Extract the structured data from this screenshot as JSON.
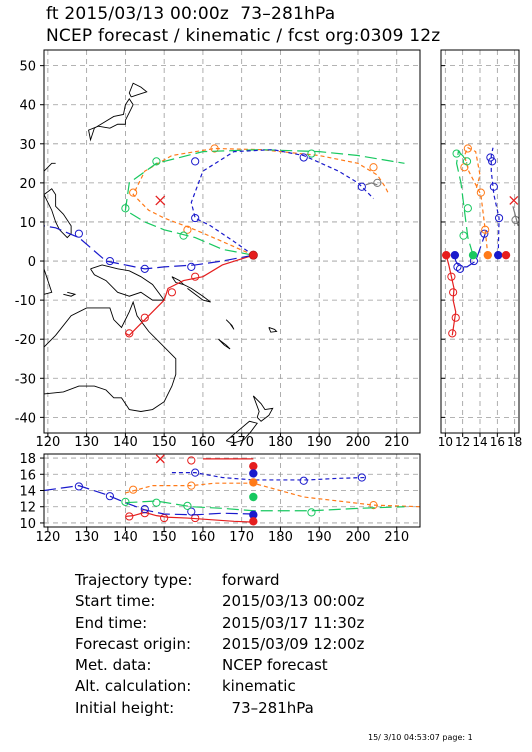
{
  "header": {
    "line1": "ft 2015/03/13 00:00z  73–281hPa",
    "line2": "NCEP forecast / kinematic / fcst org:0309 12z"
  },
  "info": [
    {
      "label": "Trajectory type:",
      "value": "forward"
    },
    {
      "label": "Start time:",
      "value": "2015/03/13 00:00z"
    },
    {
      "label": "End time:",
      "value": "2015/03/17 11:30z"
    },
    {
      "label": "Forecast origin:",
      "value": "2015/03/09 12:00z"
    },
    {
      "label": "Met. data:",
      "value": "NCEP forecast"
    },
    {
      "label": "Alt. calculation:",
      "value": "kinematic"
    },
    {
      "label": "Initial height:",
      "value": "  73–281hPa"
    }
  ],
  "footer": "15/ 3/10 04:53:07 page: 1",
  "chart_data": [
    {
      "type": "map-trajectory",
      "name": "map",
      "x_ticks": [
        120,
        130,
        140,
        150,
        160,
        170,
        180,
        190,
        200,
        210
      ],
      "y_ticks": [
        -40,
        -30,
        -20,
        -10,
        0,
        10,
        20,
        30,
        40,
        50
      ],
      "xlim": [
        119,
        216
      ],
      "ylim": [
        -44,
        54
      ],
      "grid": true,
      "source": {
        "lon": 173,
        "lat": 1.5
      },
      "series": [
        {
          "color": "#e51e1e",
          "dash": "solid",
          "points": [
            [
              173,
              1.5
            ],
            [
              165,
              -1
            ],
            [
              160,
              -4
            ],
            [
              155,
              -5
            ],
            [
              151,
              -7
            ],
            [
              150,
              -10
            ],
            [
              148,
              -12
            ],
            [
              145,
              -15
            ],
            [
              143,
              -17
            ],
            [
              141,
              -19
            ],
            [
              140,
              -18.5
            ]
          ],
          "markers": [
            [
              158,
              -4
            ],
            [
              152,
              -8
            ],
            [
              145,
              -14.5
            ],
            [
              141,
              -18.5
            ]
          ]
        },
        {
          "color": "#1a1acc",
          "dash": "long",
          "points": [
            [
              173,
              1.5
            ],
            [
              165,
              0
            ],
            [
              158,
              -1
            ],
            [
              150,
              -1.5
            ],
            [
              145,
              -2
            ],
            [
              140,
              -1
            ],
            [
              135,
              0
            ],
            [
              128,
              6
            ],
            [
              122,
              8.5
            ],
            [
              119,
              9
            ]
          ],
          "markers": [
            [
              157,
              -1.5
            ],
            [
              145,
              -2
            ],
            [
              136,
              0
            ],
            [
              128,
              7
            ]
          ]
        },
        {
          "color": "#ff7a18",
          "dash": "short",
          "points": [
            [
              173,
              1.5
            ],
            [
              165,
              5
            ],
            [
              158,
              8
            ],
            [
              150,
              11
            ],
            [
              146,
              13
            ],
            [
              142,
              17
            ],
            [
              145,
              23
            ],
            [
              152,
              27
            ],
            [
              163,
              28.8
            ],
            [
              175,
              28.5
            ],
            [
              190,
              27
            ],
            [
              200,
              25
            ],
            [
              205,
              22
            ],
            [
              207,
              19
            ],
            [
              208,
              17
            ]
          ],
          "markers": [
            [
              156,
              8
            ],
            [
              142,
              17.5
            ],
            [
              163,
              28.8
            ],
            [
              204,
              24
            ]
          ]
        },
        {
          "color": "#18c860",
          "dash": "long",
          "points": [
            [
              173,
              1.5
            ],
            [
              165,
              3
            ],
            [
              158,
              6
            ],
            [
              150,
              8
            ],
            [
              145,
              10
            ],
            [
              140,
              13
            ],
            [
              141,
              20
            ],
            [
              148,
              25
            ],
            [
              160,
              28
            ],
            [
              175,
              28.5
            ],
            [
              190,
              28
            ],
            [
              200,
              27
            ],
            [
              212,
              25
            ]
          ],
          "markers": [
            [
              155,
              6.5
            ],
            [
              140,
              13.5
            ],
            [
              148,
              25.5
            ],
            [
              188,
              27.5
            ]
          ]
        },
        {
          "color": "#1a1acc",
          "dash": "short",
          "points": [
            [
              173,
              1.5
            ],
            [
              168,
              5
            ],
            [
              162,
              9
            ],
            [
              158,
              11
            ],
            [
              157,
              15
            ],
            [
              160,
              23
            ],
            [
              168,
              28
            ],
            [
              178,
              28.5
            ],
            [
              186,
              27
            ],
            [
              195,
              23
            ],
            [
              200,
              20
            ],
            [
              203,
              17
            ],
            [
              204,
              16
            ]
          ],
          "markers": [
            [
              158,
              11
            ],
            [
              158,
              25.5
            ],
            [
              186,
              26.5
            ],
            [
              201,
              19
            ]
          ]
        },
        {
          "color": "#7a7a7a",
          "dash": "solid",
          "points": [
            [
              202,
              19.5
            ],
            [
              203.5,
              20
            ],
            [
              205,
              19.5
            ]
          ],
          "markers": [
            [
              205,
              20
            ]
          ]
        },
        {
          "color": "#e51e1e",
          "dash": "solid",
          "points": [],
          "markers": [],
          "cross": [
            [
              149,
              15.5
            ]
          ]
        }
      ]
    },
    {
      "type": "height-time",
      "name": "bottom-panel",
      "x_ticks": [
        120,
        130,
        140,
        150,
        160,
        170,
        180,
        190,
        200,
        210
      ],
      "y_ticks": [
        10,
        12,
        14,
        16,
        18
      ],
      "xlim": [
        119,
        216
      ],
      "ylim": [
        9.5,
        18.5
      ]
    },
    {
      "type": "height-lat",
      "name": "right-panel",
      "x_ticks": [
        10,
        12,
        14,
        16,
        18
      ],
      "xlim": [
        9.5,
        18.5
      ]
    }
  ]
}
